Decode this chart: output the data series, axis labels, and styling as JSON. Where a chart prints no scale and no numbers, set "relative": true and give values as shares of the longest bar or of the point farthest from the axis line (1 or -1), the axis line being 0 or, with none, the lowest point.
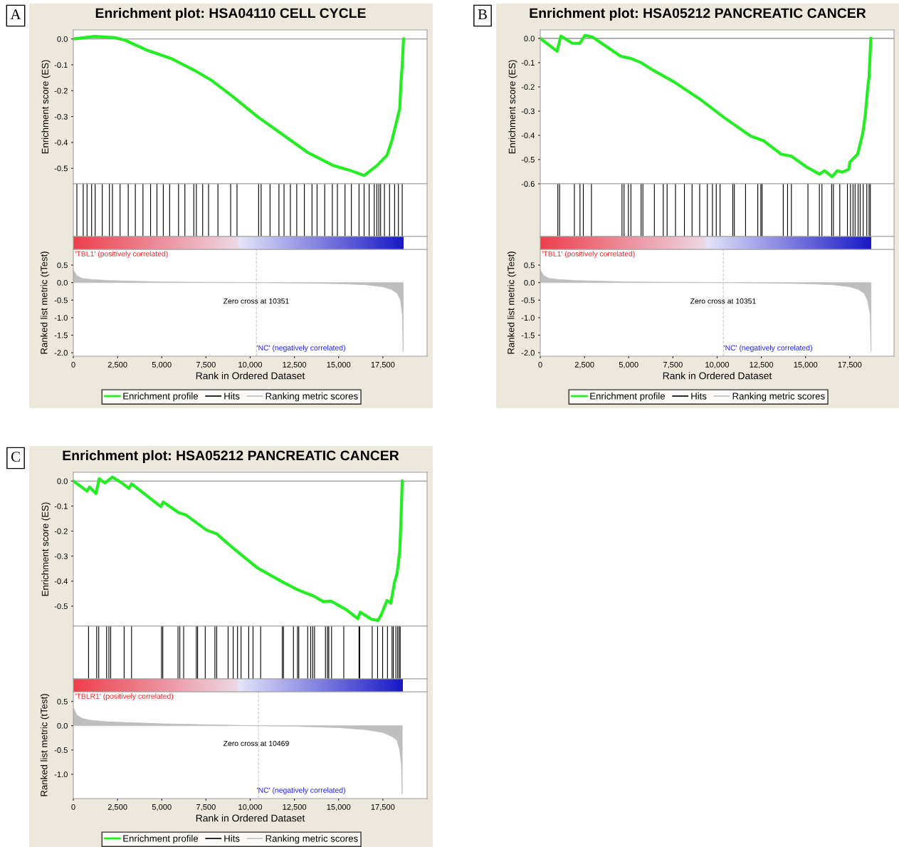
{
  "chart_data": [
    {
      "type": "line",
      "title": "Enrichment plot: HSA04110 CELL CYCLE",
      "ylabel": "Enrichment score (ES)",
      "annotations": [
        "A"
      ],
      "series": [
        {
          "name": "Enrichment profile",
          "color": "#22ee22",
          "x": [
            0,
            1207,
            2357,
            2930,
            4225,
            5518,
            6812,
            7817,
            8967,
            10404,
            11841,
            13278,
            14716,
            15721,
            16440,
            17158,
            17733,
            18021,
            18236,
            18452,
            18524,
            18596,
            18668
          ],
          "values": [
            0,
            0.01,
            0.005,
            -0.005,
            -0.045,
            -0.075,
            -0.12,
            -0.16,
            -0.22,
            -0.3,
            -0.37,
            -0.44,
            -0.49,
            -0.51,
            -0.528,
            -0.49,
            -0.45,
            -0.39,
            -0.33,
            -0.27,
            -0.17,
            -0.1,
            0.0
          ]
        }
      ],
      "xlim": [
        0,
        20000
      ],
      "ylim": [
        -0.56,
        0.035
      ],
      "yticks": [
        {
          "value": 0,
          "label": "0.0"
        },
        -0.1,
        -0.2,
        -0.3,
        -0.4,
        -0.5
      ],
      "tick_labels": "y",
      "ref_lines": [
        {
          "axis": "y",
          "value": 0,
          "color": "#808080"
        }
      ]
    },
    {
      "type": "bar",
      "relative": true,
      "xlim": [
        0,
        20000
      ],
      "tick_labels": false,
      "series": [
        {
          "name": "Hits",
          "color": "#000000",
          "x": [
            201,
            560,
            776,
            1035,
            1236,
            1638,
            2041,
            2213,
            2644,
            3104,
            3506,
            3937,
            4368,
            4728,
            5087,
            5446,
            5949,
            6308,
            6811,
            6955,
            7314,
            7645,
            8177,
            8895,
            9254,
            10476,
            10619,
            11122,
            11625,
            11913,
            12272,
            12631,
            13062,
            13493,
            13781,
            14212,
            14643,
            14930,
            15361,
            15721,
            16152,
            16439,
            16727,
            17014,
            17158,
            17273,
            17373,
            17589,
            17876,
            18163,
            18379,
            18595
          ],
          "values": [
            1,
            1,
            1,
            1,
            1,
            1,
            1,
            1,
            1,
            1,
            1,
            1,
            1,
            1,
            1,
            1,
            1,
            1,
            1,
            1,
            1,
            1,
            1,
            1,
            1,
            1,
            1,
            1,
            1,
            1,
            1,
            1,
            1,
            1,
            1,
            1,
            1,
            1,
            1,
            1,
            1,
            1,
            1,
            1,
            1,
            1,
            1,
            1,
            1,
            1,
            1,
            1
          ]
        }
      ]
    },
    {
      "type": "area",
      "xlabel": "Rank in Ordered Dataset",
      "ylabel": "Ranked list metric (tTest)",
      "legend": "bottom",
      "annotations": [
        "'TBL1' (positively correlated)",
        "Zero cross at 10351",
        "'NC' (negatively correlated)"
      ],
      "series": [
        {
          "name": "Ranking metric scores",
          "color": "#bebebe",
          "x": [
            0,
            200,
            500,
            1000,
            2000,
            3500,
            5000,
            7500,
            10351,
            12500,
            15000,
            16500,
            17500,
            18000,
            18300,
            18500,
            18600,
            18650
          ],
          "values": [
            0.36,
            0.2,
            0.12,
            0.09,
            0.06,
            0.04,
            0.02,
            0.01,
            0,
            -0.01,
            -0.03,
            -0.06,
            -0.12,
            -0.2,
            -0.3,
            -0.5,
            -0.9,
            -1.98
          ]
        }
      ],
      "xlim": [
        0,
        20000
      ],
      "xticks": [
        0,
        {
          "value": 2500,
          "label": "2,500"
        },
        {
          "value": 5000,
          "label": "5,000"
        },
        {
          "value": 7500,
          "label": "7,500"
        },
        {
          "value": 10000,
          "label": "10,000"
        },
        {
          "value": 12500,
          "label": "12,500"
        },
        {
          "value": 15000,
          "label": "15,000"
        },
        {
          "value": 17500,
          "label": "17,500"
        }
      ],
      "ylim": [
        -2.1,
        0.95
      ],
      "yticks": [
        0.5,
        {
          "value": 0,
          "label": "0.0"
        },
        -0.5,
        {
          "value": -1,
          "label": "-1.0"
        },
        -1.5,
        {
          "value": -2,
          "label": "-2.0"
        }
      ],
      "ref_lines": [
        {
          "axis": "x",
          "value": 10351,
          "color": "#c8c8c8",
          "line_style": "dashed"
        }
      ]
    },
    {
      "type": "line",
      "title": "Enrichment plot: HSA05212 PANCREATIC CANCER",
      "ylabel": "Enrichment score (ES)",
      "annotations": [
        "B"
      ],
      "series": [
        {
          "name": "Enrichment profile",
          "color": "#22ee22",
          "x": [
            0,
            950,
            1166,
            1814,
            2246,
            2534,
            2966,
            4550,
            5126,
            5702,
            6422,
            7574,
            9014,
            10454,
            11894,
            12614,
            13622,
            14198,
            15062,
            15782,
            16070,
            16502,
            16790,
            17078,
            17438,
            17510,
            17942,
            18230,
            18374,
            18518,
            18590,
            18691
          ],
          "values": [
            0,
            -0.053,
            0.01,
            -0.02,
            -0.02,
            0.013,
            0.005,
            -0.074,
            -0.083,
            -0.1,
            -0.133,
            -0.18,
            -0.25,
            -0.33,
            -0.403,
            -0.422,
            -0.478,
            -0.486,
            -0.531,
            -0.56,
            -0.546,
            -0.571,
            -0.546,
            -0.552,
            -0.541,
            -0.51,
            -0.478,
            -0.393,
            -0.318,
            -0.2,
            -0.159,
            0.0
          ]
        }
      ],
      "xlim": [
        0,
        20000
      ],
      "ylim": [
        -0.6,
        0.035
      ],
      "yticks": [
        {
          "value": 0,
          "label": "0.0"
        },
        -0.1,
        -0.2,
        -0.3,
        -0.4,
        -0.5,
        -0.6
      ],
      "tick_labels": "y",
      "ref_lines": [
        {
          "axis": "y",
          "value": 0,
          "color": "#808080"
        }
      ]
    },
    {
      "type": "bar",
      "relative": true,
      "xlim": [
        0,
        20000
      ],
      "tick_labels": false,
      "series": [
        {
          "name": "Hits",
          "color": "#000000",
          "x": [
            994,
            1094,
            1930,
            2246,
            2434,
            2894,
            4622,
            4738,
            4982,
            5126,
            5702,
            5803,
            6451,
            6955,
            7171,
            7646,
            8150,
            8582,
            9014,
            9446,
            9734,
            9950,
            10166,
            10886,
            10973,
            11606,
            12298,
            12470,
            12542,
            13738,
            13982,
            14198,
            15134,
            15782,
            15926,
            16474,
            16574,
            16934,
            17366,
            17539,
            17683,
            17798,
            17971,
            18086,
            18259,
            18461,
            18590,
            18662
          ],
          "values": [
            1,
            1,
            1,
            1,
            1,
            1,
            1,
            1,
            1,
            1,
            1,
            1,
            1,
            1,
            1,
            1,
            1,
            1,
            1,
            1,
            1,
            1,
            1,
            1,
            1,
            1,
            1,
            1,
            1,
            1,
            1,
            1,
            1,
            1,
            1,
            1,
            1,
            1,
            1,
            1,
            1,
            1,
            1,
            1,
            1,
            1,
            1,
            1
          ]
        }
      ]
    },
    {
      "type": "area",
      "xlabel": "Rank in Ordered Dataset",
      "ylabel": "Ranked list metric (tTest)",
      "legend": "bottom",
      "annotations": [
        "'TBL1' (positively correlated)",
        "Zero cross at 10351",
        "'NC' (negatively correlated)"
      ],
      "series": [
        {
          "name": "Ranking metric scores",
          "color": "#bebebe",
          "x": [
            0,
            200,
            500,
            1000,
            2000,
            3500,
            5000,
            7500,
            10351,
            12500,
            15000,
            16500,
            17500,
            18000,
            18300,
            18500,
            18650,
            18700
          ],
          "values": [
            0.36,
            0.2,
            0.12,
            0.09,
            0.06,
            0.04,
            0.02,
            0.01,
            0,
            -0.01,
            -0.03,
            -0.06,
            -0.12,
            -0.2,
            -0.3,
            -0.5,
            -0.9,
            -1.97
          ]
        }
      ],
      "xlim": [
        0,
        20000
      ],
      "xticks": [
        0,
        {
          "value": 2500,
          "label": "2,500"
        },
        {
          "value": 5000,
          "label": "5,000"
        },
        {
          "value": 7500,
          "label": "7,500"
        },
        {
          "value": 10000,
          "label": "10,000"
        },
        {
          "value": 12500,
          "label": "12,500"
        },
        {
          "value": 15000,
          "label": "15,000"
        },
        {
          "value": 17500,
          "label": "17,500"
        }
      ],
      "ylim": [
        -2.1,
        0.95
      ],
      "yticks": [
        0.5,
        {
          "value": 0,
          "label": "0.0"
        },
        -0.5,
        {
          "value": -1,
          "label": "-1.0"
        },
        -1.5,
        {
          "value": -2,
          "label": "-2.0"
        }
      ],
      "ref_lines": [
        {
          "axis": "x",
          "value": 10351,
          "color": "#c8c8c8",
          "line_style": "dashed"
        }
      ]
    },
    {
      "type": "line",
      "title": "Enrichment plot: HSA05212 PANCREATIC CANCER",
      "ylabel": "Enrichment score (ES)",
      "annotations": [
        "C"
      ],
      "series": [
        {
          "name": "Enrichment profile",
          "color": "#22ee22",
          "x": [
            0,
            776,
            920,
            1279,
            1466,
            1782,
            2213,
            2788,
            3147,
            3291,
            4943,
            5087,
            5949,
            6380,
            7530,
            8105,
            8967,
            10404,
            11841,
            12703,
            13565,
            14140,
            14571,
            15433,
            16080,
            16223,
            16870,
            17230,
            17445,
            17733,
            17948,
            18163,
            18307,
            18451,
            18523,
            18595
          ],
          "values": [
            0,
            -0.04,
            -0.024,
            -0.05,
            0.01,
            -0.008,
            0.016,
            -0.01,
            -0.029,
            -0.011,
            -0.102,
            -0.084,
            -0.126,
            -0.136,
            -0.196,
            -0.211,
            -0.264,
            -0.347,
            -0.404,
            -0.435,
            -0.459,
            -0.482,
            -0.48,
            -0.514,
            -0.55,
            -0.524,
            -0.553,
            -0.557,
            -0.529,
            -0.477,
            -0.488,
            -0.404,
            -0.368,
            -0.284,
            -0.159,
            0.0
          ]
        }
      ],
      "xlim": [
        0,
        20000
      ],
      "ylim": [
        -0.58,
        0.035
      ],
      "yticks": [
        {
          "value": 0,
          "label": "0.0"
        },
        -0.1,
        -0.2,
        -0.3,
        -0.4,
        -0.5
      ],
      "tick_labels": "y",
      "ref_lines": [
        {
          "axis": "y",
          "value": 0,
          "color": "#808080"
        }
      ]
    },
    {
      "type": "bar",
      "relative": true,
      "xlim": [
        0,
        20000
      ],
      "tick_labels": false,
      "series": [
        {
          "name": "Hits",
          "color": "#000000",
          "x": [
            862,
            1322,
            1437,
            1882,
            2012,
            2112,
            2874,
            3291,
            4986,
            5058,
            5920,
            6021,
            6237,
            6955,
            7027,
            7458,
            8004,
            8105,
            8751,
            9039,
            9283,
            9484,
            9915,
            10160,
            10591,
            11812,
            11884,
            12444,
            12674,
            12746,
            13249,
            13421,
            13536,
            13637,
            14255,
            14370,
            14442,
            14600,
            15290,
            16152,
            16195,
            16899,
            17201,
            17488,
            17761,
            18020,
            18092,
            18235,
            18336,
            18422,
            18480
          ],
          "values": [
            1,
            1,
            1,
            1,
            1,
            1,
            1,
            1,
            1,
            1,
            1,
            1,
            1,
            1,
            1,
            1,
            1,
            1,
            1,
            1,
            1,
            1,
            1,
            1,
            1,
            1,
            1,
            1,
            1,
            1,
            1,
            1,
            1,
            1,
            1,
            1,
            1,
            1,
            1,
            1,
            1,
            1,
            1,
            1,
            1,
            1,
            1,
            1,
            1,
            1,
            1
          ]
        }
      ]
    },
    {
      "type": "area",
      "xlabel": "Rank in Ordered Dataset",
      "ylabel": "Ranked list metric (tTest)",
      "legend": "bottom",
      "annotations": [
        "'TBLR1' (positively correlated)",
        "Zero cross at 10469",
        "'NC' (negatively correlated)"
      ],
      "series": [
        {
          "name": "Ranking metric scores",
          "color": "#bebebe",
          "x": [
            0,
            200,
            500,
            1000,
            2000,
            3500,
            5000,
            7500,
            10469,
            12500,
            15000,
            16500,
            17500,
            18000,
            18300,
            18450,
            18550,
            18595
          ],
          "values": [
            0.37,
            0.22,
            0.15,
            0.11,
            0.08,
            0.06,
            0.04,
            0.02,
            0,
            -0.01,
            -0.04,
            -0.08,
            -0.14,
            -0.22,
            -0.3,
            -0.5,
            -0.8,
            -1.41
          ]
        }
      ],
      "xlim": [
        0,
        20000
      ],
      "xticks": [
        0,
        {
          "value": 2500,
          "label": "2,500"
        },
        {
          "value": 5000,
          "label": "5,000"
        },
        {
          "value": 7500,
          "label": "7,500"
        },
        {
          "value": 10000,
          "label": "10,000"
        },
        {
          "value": 12500,
          "label": "12,500"
        },
        {
          "value": 15000,
          "label": "15,000"
        },
        {
          "value": 17500,
          "label": "17,500"
        }
      ],
      "ylim": [
        -1.5,
        0.7
      ],
      "yticks": [
        0.5,
        {
          "value": 0,
          "label": "0.0"
        },
        -0.5,
        {
          "value": -1,
          "label": "-1.0"
        }
      ],
      "ref_lines": [
        {
          "axis": "x",
          "value": 10469,
          "color": "#c8c8c8",
          "line_style": "dashed"
        }
      ]
    }
  ]
}
